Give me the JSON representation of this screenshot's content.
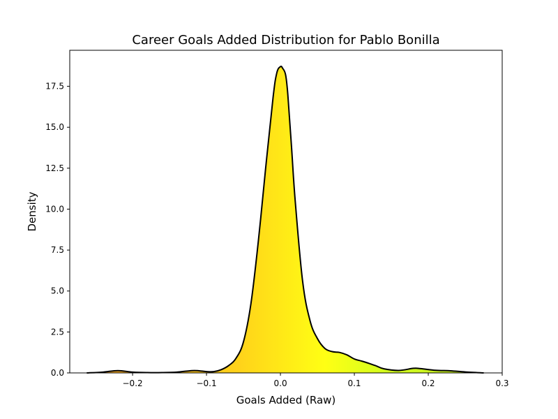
{
  "chart_data": {
    "type": "area",
    "title": "Career Goals Added Distribution for Pablo Bonilla",
    "xlabel": "Goals Added (Raw)",
    "ylabel": "Density",
    "xlim": [
      -0.285,
      0.3
    ],
    "ylim": [
      0,
      19.7
    ],
    "xticks": [
      -0.2,
      -0.1,
      0.0,
      0.1,
      0.2,
      0.3
    ],
    "xtick_labels": [
      "−0.2",
      "−0.1",
      "0.0",
      "0.1",
      "0.2",
      "0.3"
    ],
    "yticks": [
      0,
      2.5,
      5.0,
      7.5,
      10.0,
      12.5,
      15.0,
      17.5
    ],
    "ytick_labels": [
      "0.0",
      "2.5",
      "5.0",
      "7.5",
      "10.0",
      "12.5",
      "15.0",
      "17.5"
    ],
    "grid": false,
    "legend": "none",
    "line_color": "#000000",
    "fill_colormap": [
      "#f4a22a",
      "#ffd21a",
      "#ffff14",
      "#d4ff1e",
      "#c0e624"
    ],
    "series": [
      {
        "x": [
          -0.262,
          -0.24,
          -0.22,
          -0.2,
          -0.18,
          -0.16,
          -0.14,
          -0.12,
          -0.11,
          -0.1,
          -0.09,
          -0.08,
          -0.07,
          -0.06,
          -0.05,
          -0.04,
          -0.03,
          -0.02,
          -0.01,
          -0.005,
          0.0,
          0.003,
          0.007,
          0.01,
          0.015,
          0.02,
          0.03,
          0.04,
          0.05,
          0.06,
          0.07,
          0.08,
          0.09,
          0.1,
          0.11,
          0.12,
          0.13,
          0.14,
          0.16,
          0.18,
          0.19,
          0.21,
          0.23,
          0.25,
          0.275
        ],
        "y": [
          0.0,
          0.05,
          0.14,
          0.05,
          0.02,
          0.02,
          0.05,
          0.14,
          0.13,
          0.08,
          0.08,
          0.2,
          0.45,
          0.9,
          1.9,
          4.2,
          8.0,
          12.5,
          16.8,
          18.3,
          18.7,
          18.6,
          18.2,
          17.0,
          13.8,
          10.5,
          5.6,
          3.2,
          2.1,
          1.5,
          1.3,
          1.25,
          1.1,
          0.85,
          0.72,
          0.58,
          0.42,
          0.25,
          0.15,
          0.28,
          0.26,
          0.16,
          0.13,
          0.06,
          0.0
        ]
      }
    ]
  }
}
